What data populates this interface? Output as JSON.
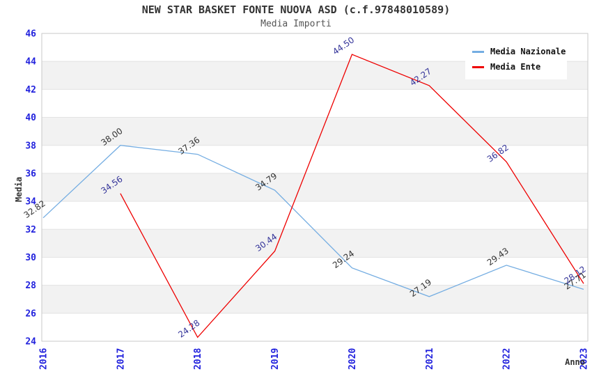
{
  "chart_data": {
    "type": "line",
    "title": "NEW STAR BASKET FONTE NUOVA ASD (c.f.97848010589)",
    "subtitle": "Media Importi",
    "xlabel": "Anno",
    "ylabel": "Media",
    "categories": [
      "2016",
      "2017",
      "2018",
      "2019",
      "2020",
      "2021",
      "2022",
      "2023"
    ],
    "series": [
      {
        "name": "Media Nazionale",
        "color": "#74ade2",
        "label_color": "#333333",
        "values": [
          32.82,
          38.0,
          37.36,
          34.79,
          29.24,
          27.19,
          29.43,
          27.71
        ]
      },
      {
        "name": "Media Ente",
        "color": "#ee0000",
        "label_color": "#333399",
        "values": [
          null,
          34.56,
          24.28,
          30.44,
          44.5,
          42.27,
          36.82,
          28.12
        ]
      }
    ],
    "ylim": [
      24,
      46
    ],
    "yticks": [
      24,
      26,
      28,
      30,
      32,
      34,
      36,
      38,
      40,
      42,
      44,
      46
    ],
    "grid": "horizontal gridlines with alternating shaded bands",
    "legend_position": "top-right",
    "colors": {
      "tick_label": "#2222dd",
      "band_fill": "#f2f2f2",
      "gridline": "#e3e3e3",
      "plot_frame": "#c8c8c8",
      "title_text": "#333333",
      "subtitle_text": "#555555"
    }
  }
}
